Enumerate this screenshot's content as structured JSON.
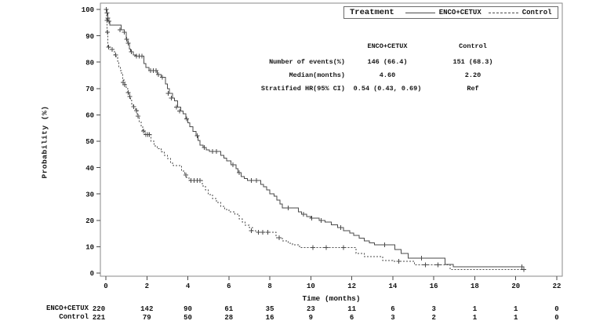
{
  "legend": {
    "title": "Treatment",
    "series": [
      {
        "label": "ENCO+CETUX",
        "line": "solid"
      },
      {
        "label": "Control",
        "line": "dashed"
      }
    ]
  },
  "stats_table": {
    "columns": [
      "ENCO+CETUX",
      "Control"
    ],
    "rows": [
      {
        "label": "Number of events(%)",
        "values": [
          "146 (66.4)",
          "151 (68.3)"
        ]
      },
      {
        "label": "Median(months)",
        "values": [
          "4.60",
          "2.20"
        ]
      },
      {
        "label": "Stratified HR(95% CI)",
        "values": [
          "0.54 (0.43, 0.69)",
          "Ref"
        ]
      }
    ]
  },
  "risk_table": {
    "rows": [
      {
        "label": "ENCO+CETUX",
        "counts": [
          220,
          142,
          90,
          61,
          35,
          23,
          11,
          6,
          3,
          1,
          1,
          0
        ]
      },
      {
        "label": "Control",
        "counts": [
          221,
          79,
          50,
          28,
          16,
          9,
          6,
          3,
          2,
          1,
          1,
          0
        ]
      }
    ]
  },
  "colors": {
    "curve": "#4a4a4a",
    "frame": "#8a8a8a",
    "tick": "#4a4a4a",
    "text": "#141414",
    "background": "#ffffff"
  },
  "chart_data": {
    "type": "line",
    "subtype": "kaplan-meier-step",
    "title": "",
    "xlabel": "Time (months)",
    "ylabel": "Probability (%)",
    "xlim": [
      0,
      22
    ],
    "ylim": [
      0,
      100
    ],
    "xticks": [
      0,
      2,
      4,
      6,
      8,
      10,
      12,
      14,
      16,
      18,
      20,
      22
    ],
    "yticks": [
      0,
      10,
      20,
      30,
      40,
      50,
      60,
      70,
      80,
      90,
      100
    ],
    "grid": false,
    "frame": true,
    "legend_position": "top-right",
    "series": [
      {
        "name": "ENCO+CETUX",
        "line": "solid",
        "median_months": 4.6,
        "steps": [
          [
            0,
            100
          ],
          [
            0.05,
            98.6
          ],
          [
            0.1,
            96.8
          ],
          [
            0.15,
            95.5
          ],
          [
            0.2,
            94.1
          ],
          [
            0.75,
            92.3
          ],
          [
            0.9,
            91.4
          ],
          [
            1.0,
            88.7
          ],
          [
            1.07,
            87.2
          ],
          [
            1.14,
            84.9
          ],
          [
            1.2,
            83.9
          ],
          [
            1.33,
            82.7
          ],
          [
            1.45,
            82.3
          ],
          [
            1.85,
            79.5
          ],
          [
            1.95,
            78
          ],
          [
            2.1,
            76.8
          ],
          [
            2.5,
            75.3
          ],
          [
            2.7,
            74.2
          ],
          [
            2.9,
            71.8
          ],
          [
            3.0,
            70
          ],
          [
            3.1,
            68.2
          ],
          [
            3.25,
            66.4
          ],
          [
            3.35,
            65.4
          ],
          [
            3.5,
            63
          ],
          [
            3.65,
            61.5
          ],
          [
            3.76,
            60.4
          ],
          [
            3.9,
            58.5
          ],
          [
            4.0,
            57
          ],
          [
            4.1,
            55.5
          ],
          [
            4.25,
            53.7
          ],
          [
            4.4,
            52.1
          ],
          [
            4.5,
            50.3
          ],
          [
            4.6,
            48.5
          ],
          [
            4.75,
            47.6
          ],
          [
            4.9,
            46.7
          ],
          [
            5.05,
            46.1
          ],
          [
            5.6,
            44.6
          ],
          [
            5.75,
            43.6
          ],
          [
            5.9,
            42.6
          ],
          [
            6.1,
            41.1
          ],
          [
            6.35,
            39.6
          ],
          [
            6.45,
            38.1
          ],
          [
            6.6,
            36.6
          ],
          [
            6.75,
            35.8
          ],
          [
            6.9,
            35.1
          ],
          [
            7.55,
            33.6
          ],
          [
            7.7,
            32.7
          ],
          [
            7.85,
            31.5
          ],
          [
            8.0,
            30.1
          ],
          [
            8.2,
            29.2
          ],
          [
            8.35,
            27.7
          ],
          [
            8.5,
            26.2
          ],
          [
            8.6,
            24.7
          ],
          [
            9.4,
            23.2
          ],
          [
            9.55,
            22.3
          ],
          [
            9.8,
            21.4
          ],
          [
            10.0,
            20.8
          ],
          [
            10.4,
            20
          ],
          [
            10.7,
            19.3
          ],
          [
            11.0,
            18.3
          ],
          [
            11.3,
            17.3
          ],
          [
            11.6,
            16.1
          ],
          [
            11.9,
            15.2
          ],
          [
            12.1,
            14.3
          ],
          [
            12.35,
            13.2
          ],
          [
            12.6,
            12.2
          ],
          [
            12.85,
            11.5
          ],
          [
            13.1,
            10.7
          ],
          [
            14.1,
            8.9
          ],
          [
            14.4,
            7.4
          ],
          [
            14.75,
            5.7
          ],
          [
            16.55,
            3.3
          ],
          [
            16.95,
            2.4
          ],
          [
            20.3,
            2.4
          ]
        ],
        "censors": [
          [
            0.05,
            98.6
          ],
          [
            0.1,
            96.8
          ],
          [
            0.15,
            95.5
          ],
          [
            0.69,
            92.3
          ],
          [
            0.9,
            91.4
          ],
          [
            1.02,
            88.7
          ],
          [
            1.1,
            87.2
          ],
          [
            1.25,
            83.9
          ],
          [
            1.5,
            82.3
          ],
          [
            1.63,
            82.3
          ],
          [
            1.76,
            82.3
          ],
          [
            2.18,
            76.8
          ],
          [
            2.32,
            76.8
          ],
          [
            2.44,
            76.8
          ],
          [
            2.56,
            75.3
          ],
          [
            2.76,
            74.2
          ],
          [
            3.05,
            68.2
          ],
          [
            3.2,
            66.4
          ],
          [
            3.45,
            63
          ],
          [
            3.6,
            61.5
          ],
          [
            3.95,
            58.5
          ],
          [
            4.45,
            52.1
          ],
          [
            4.8,
            47.6
          ],
          [
            5.2,
            46.1
          ],
          [
            5.4,
            46.1
          ],
          [
            6.2,
            41.1
          ],
          [
            6.5,
            38.1
          ],
          [
            7.1,
            35.1
          ],
          [
            7.35,
            35.1
          ],
          [
            8.9,
            24.7
          ],
          [
            9.65,
            22.3
          ],
          [
            10.05,
            20.8
          ],
          [
            10.5,
            20
          ],
          [
            11.45,
            17.3
          ],
          [
            13.6,
            10.7
          ],
          [
            15.4,
            5.7
          ],
          [
            20.3,
            2.4
          ]
        ]
      },
      {
        "name": "Control",
        "line": "dashed",
        "median_months": 2.2,
        "steps": [
          [
            0,
            100
          ],
          [
            0.03,
            95.9
          ],
          [
            0.06,
            91.4
          ],
          [
            0.1,
            85.7
          ],
          [
            0.2,
            84.8
          ],
          [
            0.43,
            82.7
          ],
          [
            0.5,
            81.8
          ],
          [
            0.57,
            80.4
          ],
          [
            0.63,
            78.3
          ],
          [
            0.7,
            76.8
          ],
          [
            0.76,
            75.3
          ],
          [
            0.82,
            73.8
          ],
          [
            0.88,
            72.3
          ],
          [
            0.95,
            71.4
          ],
          [
            1.0,
            69.9
          ],
          [
            1.07,
            68.5
          ],
          [
            1.14,
            67
          ],
          [
            1.2,
            65.5
          ],
          [
            1.26,
            64
          ],
          [
            1.33,
            63.1
          ],
          [
            1.45,
            61.6
          ],
          [
            1.53,
            59.5
          ],
          [
            1.62,
            57.5
          ],
          [
            1.72,
            55.8
          ],
          [
            1.8,
            53.9
          ],
          [
            1.9,
            52.5
          ],
          [
            2.2,
            50
          ],
          [
            2.35,
            48.2
          ],
          [
            2.5,
            47.1
          ],
          [
            2.7,
            46
          ],
          [
            2.85,
            44.6
          ],
          [
            3.0,
            43.5
          ],
          [
            3.15,
            41.7
          ],
          [
            3.3,
            40.8
          ],
          [
            3.7,
            38.7
          ],
          [
            3.85,
            37.2
          ],
          [
            3.95,
            36
          ],
          [
            4.1,
            35.1
          ],
          [
            4.7,
            33
          ],
          [
            4.85,
            31.5
          ],
          [
            5.0,
            29.8
          ],
          [
            5.2,
            28.3
          ],
          [
            5.4,
            26.8
          ],
          [
            5.6,
            25.3
          ],
          [
            5.8,
            24.1
          ],
          [
            6.0,
            23.2
          ],
          [
            6.3,
            22.3
          ],
          [
            6.5,
            20.5
          ],
          [
            6.65,
            19.3
          ],
          [
            6.8,
            18.2
          ],
          [
            7.0,
            17.3
          ],
          [
            7.15,
            16.1
          ],
          [
            7.3,
            15.5
          ],
          [
            8.3,
            13.4
          ],
          [
            8.6,
            12.2
          ],
          [
            8.9,
            11.3
          ],
          [
            9.1,
            10.7
          ],
          [
            9.45,
            9.7
          ],
          [
            12.2,
            7.4
          ],
          [
            12.6,
            6.3
          ],
          [
            13.5,
            4.8
          ],
          [
            14.0,
            4.5
          ],
          [
            15.05,
            3.1
          ],
          [
            16.8,
            1.4
          ],
          [
            20.4,
            1.4
          ]
        ],
        "censors": [
          [
            0.02,
            100
          ],
          [
            0.05,
            95.9
          ],
          [
            0.08,
            91.4
          ],
          [
            0.13,
            85.7
          ],
          [
            0.3,
            84.8
          ],
          [
            0.47,
            82.7
          ],
          [
            0.85,
            72.3
          ],
          [
            0.92,
            71.4
          ],
          [
            1.1,
            68.5
          ],
          [
            1.17,
            67
          ],
          [
            1.35,
            63.1
          ],
          [
            1.5,
            61.6
          ],
          [
            1.57,
            59.5
          ],
          [
            1.83,
            53.9
          ],
          [
            1.95,
            52.5
          ],
          [
            2.05,
            52.5
          ],
          [
            2.12,
            52.5
          ],
          [
            3.9,
            37.2
          ],
          [
            4.15,
            35.1
          ],
          [
            4.3,
            35.1
          ],
          [
            4.45,
            35.1
          ],
          [
            4.6,
            35.1
          ],
          [
            7.1,
            16.1
          ],
          [
            7.45,
            15.5
          ],
          [
            7.65,
            15.5
          ],
          [
            7.9,
            15.5
          ],
          [
            8.45,
            13.4
          ],
          [
            10.1,
            9.7
          ],
          [
            10.75,
            9.7
          ],
          [
            11.6,
            9.7
          ],
          [
            14.3,
            4.5
          ],
          [
            15.6,
            3.1
          ],
          [
            16.2,
            3.1
          ],
          [
            20.4,
            1.4
          ]
        ]
      }
    ]
  }
}
